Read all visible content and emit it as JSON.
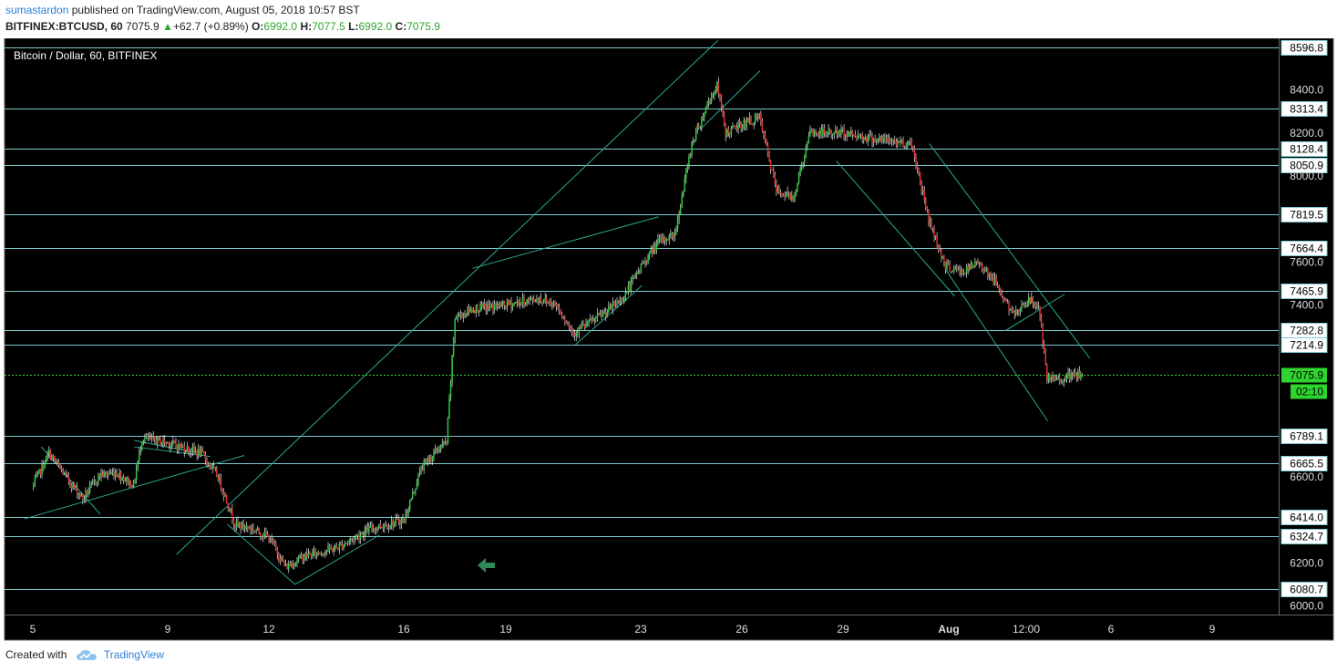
{
  "header": {
    "author": "sumastardon",
    "published_text": "published on TradingView.com, August 05, 2018 10:57 BST",
    "symbol": "BITFINEX:BTCUSD, 60",
    "last": "7075.9",
    "change": "+62.7 (+0.89%)",
    "o_label": "O:",
    "o_value": "6992.0",
    "h_label": "H:",
    "h_value": "7077.5",
    "l_label": "L:",
    "l_value": "6992.0",
    "c_label": "C:",
    "c_value": "7075.9"
  },
  "chart_title": "Bitcoin / Dollar, 60, BITFINEX",
  "footer": {
    "created_with": "Created with",
    "brand": "TradingView"
  },
  "colors": {
    "background": "#000000",
    "level_line": "#7ec8cc",
    "trend_line": "#2aa890",
    "up_candle": "#2ecc40",
    "down_candle": "#e03030",
    "current_price": "#2fd52f",
    "arrow": "#2e8b57"
  },
  "chart_data": {
    "type": "candlestick",
    "interval": "60",
    "ylim": [
      5960,
      8640
    ],
    "current_price": 7075.9,
    "countdown": "02:10",
    "price_scale_ticks": [
      "8400.0",
      "8200.0",
      "8000.0",
      "7600.0",
      "7400.0",
      "6600.0",
      "6200.0",
      "6000.0"
    ],
    "horizontal_levels": [
      8596.8,
      8313.4,
      8128.4,
      8050.9,
      7819.5,
      7664.4,
      7465.9,
      7282.8,
      7214.9,
      6789.1,
      6665.5,
      6414.0,
      6324.7,
      6080.7
    ],
    "time_axis": [
      "5",
      "9",
      "12",
      "16",
      "19",
      "23",
      "26",
      "29",
      "Aug",
      "12:00",
      "6",
      "9"
    ],
    "price_path": [
      [
        "Jul 5 00:00",
        6550
      ],
      [
        "Jul 5 12:00",
        6710
      ],
      [
        "Jul 6 00:00",
        6600
      ],
      [
        "Jul 6 12:00",
        6500
      ],
      [
        "Jul 7 00:00",
        6610
      ],
      [
        "Jul 7 12:00",
        6620
      ],
      [
        "Jul 8 00:00",
        6560
      ],
      [
        "Jul 8 06:00",
        6780
      ],
      [
        "Jul 9 00:00",
        6760
      ],
      [
        "Jul 10 00:00",
        6710
      ],
      [
        "Jul 10 12:00",
        6600
      ],
      [
        "Jul 11 00:00",
        6380
      ],
      [
        "Jul 11 12:00",
        6360
      ],
      [
        "Jul 12 00:00",
        6320
      ],
      [
        "Jul 12 12:00",
        6180
      ],
      [
        "Jul 13 00:00",
        6230
      ],
      [
        "Jul 14 00:00",
        6270
      ],
      [
        "Jul 15 00:00",
        6360
      ],
      [
        "Jul 16 00:00",
        6400
      ],
      [
        "Jul 16 12:00",
        6640
      ],
      [
        "Jul 17 00:00",
        6730
      ],
      [
        "Jul 17 06:00",
        6760
      ],
      [
        "Jul 17 12:00",
        7340
      ],
      [
        "Jul 18 00:00",
        7380
      ],
      [
        "Jul 19 00:00",
        7400
      ],
      [
        "Jul 20 00:00",
        7430
      ],
      [
        "Jul 20 12:00",
        7400
      ],
      [
        "Jul 21 00:00",
        7270
      ],
      [
        "Jul 22 00:00",
        7370
      ],
      [
        "Jul 22 12:00",
        7440
      ],
      [
        "Jul 23 00:00",
        7580
      ],
      [
        "Jul 23 12:00",
        7690
      ],
      [
        "Jul 24 00:00",
        7730
      ],
      [
        "Jul 24 12:00",
        8150
      ],
      [
        "Jul 25 00:00",
        8350
      ],
      [
        "Jul 25 06:00",
        8420
      ],
      [
        "Jul 25 12:00",
        8200
      ],
      [
        "Jul 26 00:00",
        8240
      ],
      [
        "Jul 26 12:00",
        8270
      ],
      [
        "Jul 27 00:00",
        7930
      ],
      [
        "Jul 27 12:00",
        7900
      ],
      [
        "Jul 28 00:00",
        8200
      ],
      [
        "Jul 29 00:00",
        8200
      ],
      [
        "Jul 30 00:00",
        8170
      ],
      [
        "Jul 31 00:00",
        8150
      ],
      [
        "Jul 31 12:00",
        7800
      ],
      [
        "Aug 1 00:00",
        7580
      ],
      [
        "Aug 1 12:00",
        7550
      ],
      [
        "Aug 2 00:00",
        7600
      ],
      [
        "Aug 2 12:00",
        7500
      ],
      [
        "Aug 3 00:00",
        7350
      ],
      [
        "Aug 3 06:00",
        7400
      ],
      [
        "Aug 3 12:00",
        7420
      ],
      [
        "Aug 3 18:00",
        7400
      ],
      [
        "Aug 4 00:00",
        7050
      ],
      [
        "Aug 4 12:00",
        7060
      ],
      [
        "Aug 5 00:00",
        7075.9
      ]
    ]
  }
}
